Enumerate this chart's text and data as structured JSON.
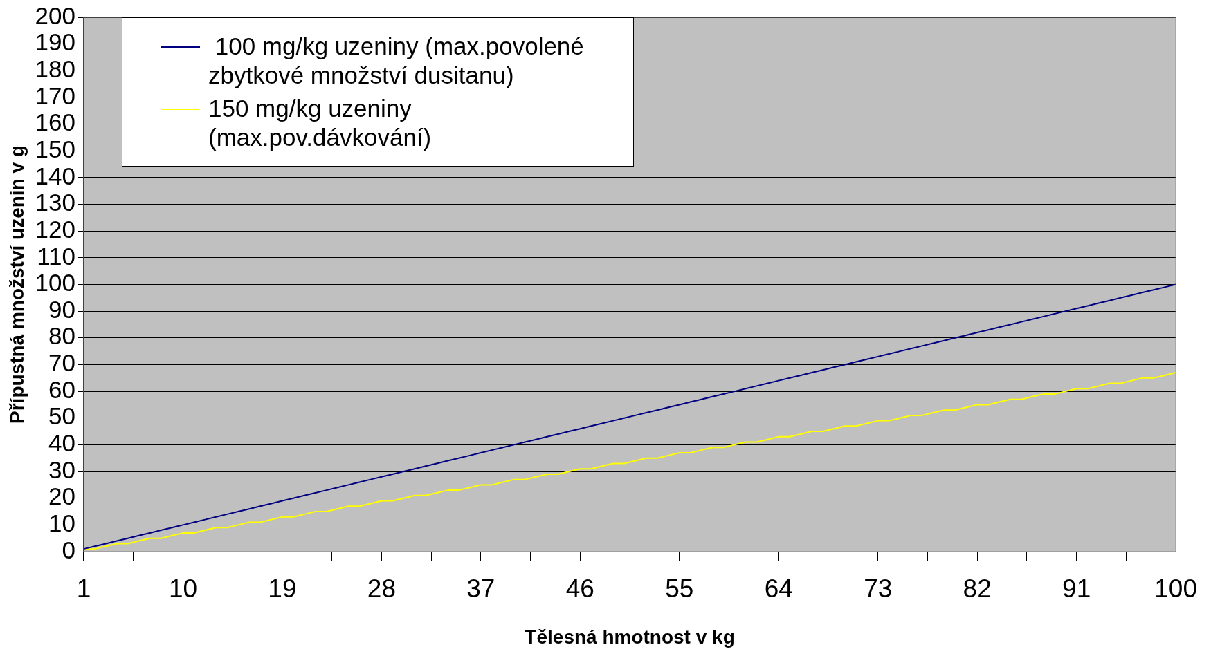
{
  "chart_data": {
    "type": "line",
    "xlabel": "Tělesná hmotnost v kg",
    "ylabel": "Přípustná množství uzenin v g",
    "x": [
      1,
      2,
      3,
      4,
      5,
      6,
      7,
      8,
      9,
      10,
      11,
      12,
      13,
      14,
      15,
      16,
      17,
      18,
      19,
      20,
      21,
      22,
      23,
      24,
      25,
      26,
      27,
      28,
      29,
      30,
      31,
      32,
      33,
      34,
      35,
      36,
      37,
      38,
      39,
      40,
      41,
      42,
      43,
      44,
      45,
      46,
      47,
      48,
      49,
      50,
      51,
      52,
      53,
      54,
      55,
      56,
      57,
      58,
      59,
      60,
      61,
      62,
      63,
      64,
      65,
      66,
      67,
      68,
      69,
      70,
      71,
      72,
      73,
      74,
      75,
      76,
      77,
      78,
      79,
      80,
      81,
      82,
      83,
      84,
      85,
      86,
      87,
      88,
      89,
      90,
      91,
      92,
      93,
      94,
      95,
      96,
      97,
      98,
      99,
      100
    ],
    "xlim": [
      1,
      100
    ],
    "xticks": [
      1,
      {
        "value": 5.5,
        "label": null
      },
      10,
      {
        "value": 14.5,
        "label": null
      },
      19,
      {
        "value": 23.5,
        "label": null
      },
      28,
      {
        "value": 32.5,
        "label": null
      },
      37,
      {
        "value": 41.5,
        "label": null
      },
      46,
      {
        "value": 50.5,
        "label": null
      },
      55,
      {
        "value": 59.5,
        "label": null
      },
      64,
      {
        "value": 68.5,
        "label": null
      },
      73,
      {
        "value": 77.5,
        "label": null
      },
      82,
      {
        "value": 86.5,
        "label": null
      },
      91,
      {
        "value": 95.5,
        "label": null
      },
      100
    ],
    "ylim": [
      0,
      200
    ],
    "yticks": [
      0,
      10,
      20,
      30,
      40,
      50,
      60,
      70,
      80,
      90,
      100,
      110,
      120,
      130,
      140,
      150,
      160,
      170,
      180,
      190,
      200
    ],
    "grid": "y",
    "legend": "top left",
    "marker": "none",
    "line_style": "solid",
    "series": [
      {
        "name": " 100 mg/kg uzeniny (max.povolené zbytkové množství dusitanu)",
        "color": "#000080",
        "values": [
          1,
          2,
          3,
          4,
          5,
          6,
          7,
          8,
          9,
          10,
          11,
          12,
          13,
          14,
          15,
          16,
          17,
          18,
          19,
          20,
          21,
          22,
          23,
          24,
          25,
          26,
          27,
          28,
          29,
          30,
          31,
          32,
          33,
          34,
          35,
          36,
          37,
          38,
          39,
          40,
          41,
          42,
          43,
          44,
          45,
          46,
          47,
          48,
          49,
          50,
          51,
          52,
          53,
          54,
          55,
          56,
          57,
          58,
          59,
          60,
          61,
          62,
          63,
          64,
          65,
          66,
          67,
          68,
          69,
          70,
          71,
          72,
          73,
          74,
          75,
          76,
          77,
          78,
          79,
          80,
          81,
          82,
          83,
          84,
          85,
          86,
          87,
          88,
          89,
          90,
          91,
          92,
          93,
          94,
          95,
          96,
          97,
          98,
          99,
          100
        ]
      },
      {
        "name": "150 mg/kg uzeniny (max.pov.dávkování)",
        "color": "#ffff00",
        "values": [
          1,
          1,
          2,
          3,
          3,
          4,
          5,
          5,
          6,
          7,
          7,
          8,
          9,
          9,
          10,
          11,
          11,
          12,
          13,
          13,
          14,
          15,
          15,
          16,
          17,
          17,
          18,
          19,
          19,
          20,
          21,
          21,
          22,
          23,
          23,
          24,
          25,
          25,
          26,
          27,
          27,
          28,
          29,
          29,
          30,
          31,
          31,
          32,
          33,
          33,
          34,
          35,
          35,
          36,
          37,
          37,
          38,
          39,
          39,
          40,
          41,
          41,
          42,
          43,
          43,
          44,
          45,
          45,
          46,
          47,
          47,
          48,
          49,
          49,
          50,
          51,
          51,
          52,
          53,
          53,
          54,
          55,
          55,
          56,
          57,
          57,
          58,
          59,
          59,
          60,
          61,
          61,
          62,
          63,
          63,
          64,
          65,
          65,
          66,
          67
        ]
      }
    ]
  }
}
